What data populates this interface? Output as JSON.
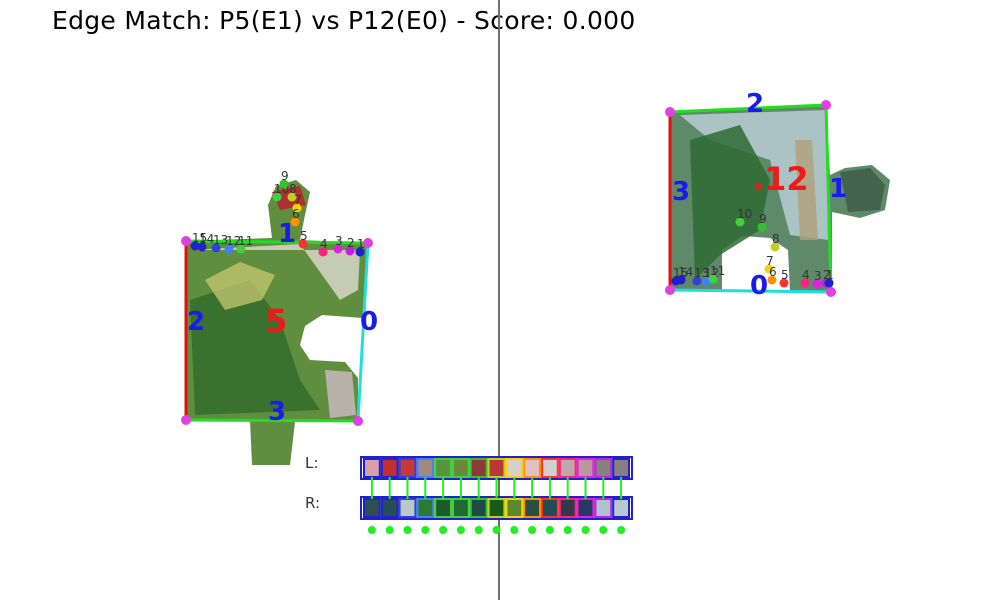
{
  "title": "Edge Match: P5(E1) vs P12(E0) - Score: 0.000",
  "strip_labels": {
    "left": "L:",
    "right": "R:"
  },
  "left_piece": {
    "id": "5",
    "edge_labels": [
      "0",
      "1",
      "2",
      "3"
    ],
    "sample_index_labels": [
      "15",
      "14",
      "13",
      "12",
      "11",
      "10",
      "9",
      "8",
      "7",
      "6",
      "5",
      "4",
      "3",
      "2",
      "1"
    ]
  },
  "right_piece": {
    "id": ".12",
    "edge_labels": [
      "0",
      "1",
      "2",
      "3"
    ],
    "sample_index_labels": [
      "15",
      "14",
      "13",
      "12",
      "11",
      "10",
      "9",
      "8",
      "7",
      "6",
      "5",
      "4",
      "3",
      "2",
      "1"
    ]
  },
  "left_colors": [
    "#d9a0a8",
    "#c03030",
    "#c83838",
    "#a08a80",
    "#58943c",
    "#6a8a3a",
    "#903838",
    "#b83838",
    "#d8d0c8",
    "#e0c0c0",
    "#d0d0d0",
    "#c0a8a8",
    "#b89898",
    "#888080",
    "#888080"
  ],
  "right_colors": [
    "#2d4e52",
    "#264d5a",
    "#bcc8c4",
    "#2c7a30",
    "#1e5a2c",
    "#226a30",
    "#204a44",
    "#1a5a14",
    "#5a8a2c",
    "#2a4e44",
    "#204c54",
    "#303a4a",
    "#283860",
    "#b0c0d0",
    "#b8c8d0"
  ],
  "border_colors": [
    "#2020d0",
    "#2020d0",
    "#3040e0",
    "#4080ff",
    "#40d040",
    "#40d040",
    "#30c030",
    "#c0d020",
    "#ffd000",
    "#ff9000",
    "#ff3030",
    "#ff2080",
    "#e020e0",
    "#c020e0",
    "#2020d0"
  ],
  "match_dot_color": "#22ee22",
  "accents": {
    "divider": "#707070",
    "edge_red": "#e01010",
    "edge_green": "#22dd22",
    "edge_cyan": "#22dddd",
    "corner_magenta": "#e040e0",
    "edge_number": "#1a1aee",
    "piece_number": "#ee1a1a"
  }
}
